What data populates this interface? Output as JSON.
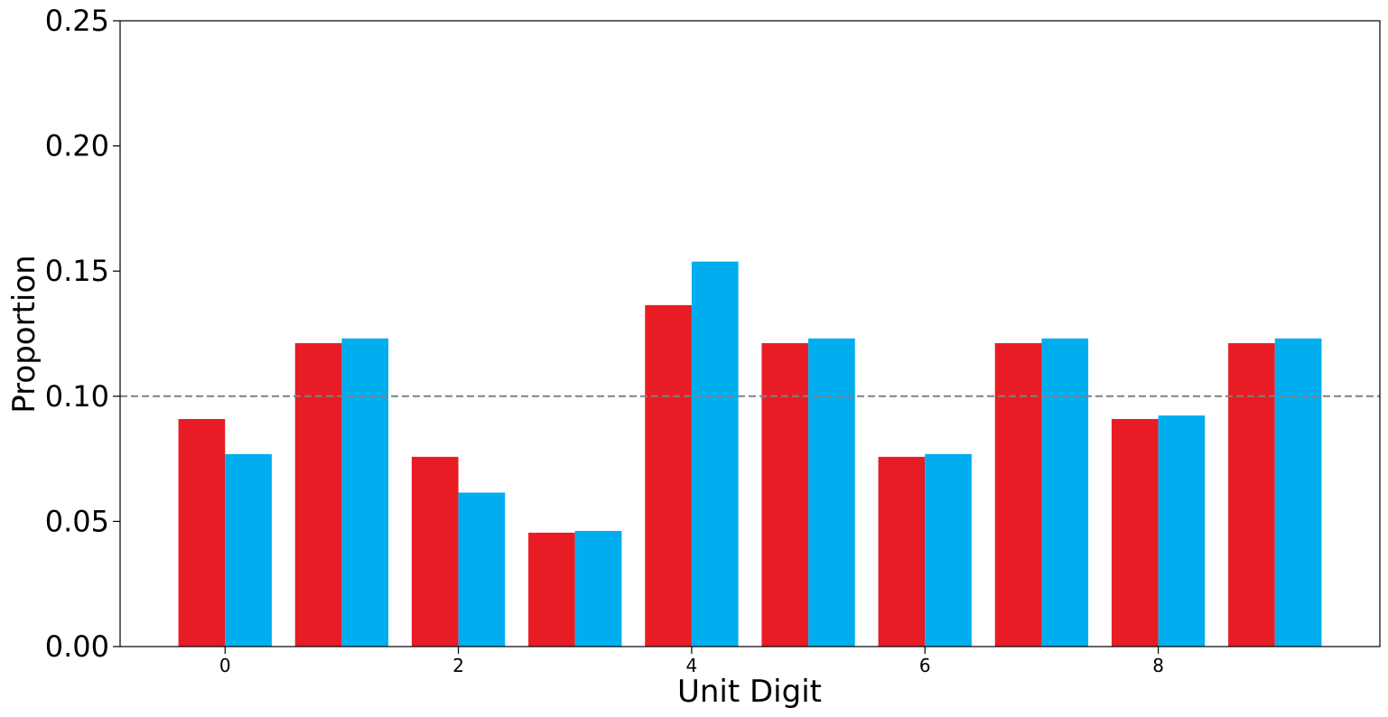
{
  "chart_data": {
    "type": "bar",
    "title": "",
    "xlabel": "Unit Digit",
    "ylabel": "Proportion",
    "categories": [
      0,
      1,
      2,
      3,
      4,
      5,
      6,
      7,
      8,
      9
    ],
    "x_tick_labels": [
      "0",
      "2",
      "4",
      "6",
      "8"
    ],
    "x_tick_values": [
      0,
      2,
      4,
      6,
      8
    ],
    "y_tick_labels": [
      "0.00",
      "0.05",
      "0.10",
      "0.15",
      "0.20",
      "0.25"
    ],
    "y_tick_values": [
      0,
      0.05,
      0.1,
      0.15,
      0.2,
      0.25
    ],
    "ylim": [
      0,
      0.25
    ],
    "xlim": [
      -0.9,
      9.9
    ],
    "grid": false,
    "reference_line": {
      "y": 0.1,
      "style": "dashed",
      "color": "#808080"
    },
    "series": [
      {
        "color": "#e81c24",
        "values": [
          0.0909,
          0.1212,
          0.0758,
          0.0455,
          0.1364,
          0.1212,
          0.0758,
          0.1212,
          0.0909,
          0.1212
        ]
      },
      {
        "color": "#00aef0",
        "values": [
          0.0769,
          0.1231,
          0.0615,
          0.0462,
          0.1538,
          0.1231,
          0.0769,
          0.1231,
          0.0923,
          0.1231
        ]
      }
    ]
  }
}
